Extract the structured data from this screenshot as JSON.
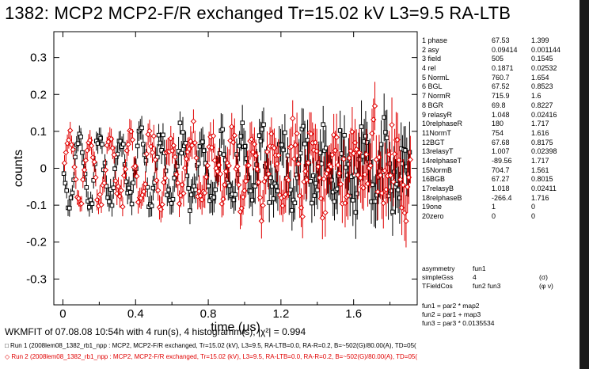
{
  "title": "1382: MCP2  MCP2-F/R exchanged  Tr=15.02 kV  L3=9.5  RA-LTB",
  "colors": {
    "run1": "#000000",
    "run2": "#e00000",
    "axis": "#000000"
  },
  "chart_data": {
    "type": "scatter",
    "xlabel": "time (μs)",
    "ylabel": "counts",
    "xlim": [
      -0.05,
      1.95
    ],
    "ylim": [
      -0.37,
      0.37
    ],
    "xticks": [
      0,
      0.4,
      0.8,
      1.2,
      1.6
    ],
    "xtick_labels": [
      "0",
      "0.4",
      "0.8",
      "1.2",
      "1.6"
    ],
    "yticks": [
      -0.3,
      -0.2,
      -0.1,
      0,
      0.1,
      0.2,
      0.3
    ],
    "ytick_labels": [
      "-0.3",
      "-0.2",
      "-0.1",
      "0",
      "0.1",
      "0.2",
      "0.3"
    ],
    "grid": false,
    "series": [
      {
        "marker": "square",
        "color": "#000000",
        "t0": 0.005,
        "dt": 0.0078,
        "n": 245,
        "amplitude": 0.095,
        "frequency": 8.93,
        "phase_deg": 67.5
      },
      {
        "marker": "diamond",
        "color": "#e00000",
        "t0": 0.005,
        "dt": 0.0078,
        "n": 245,
        "amplitude": 0.094,
        "frequency": 8.93,
        "phase_deg": 247.5
      }
    ]
  },
  "params": [
    {
      "name": "1 phase",
      "value": "67.53",
      "error": "1.399"
    },
    {
      "name": "2 asy",
      "value": "0.09414",
      "error": "0.001144"
    },
    {
      "name": "3 field",
      "value": "505",
      "error": "0.1545"
    },
    {
      "name": "4 rel",
      "value": "0.1871",
      "error": "0.02532"
    },
    {
      "name": "5 NormL",
      "value": "760.7",
      "error": "1.654"
    },
    {
      "name": "6 BGL",
      "value": "67.52",
      "error": "0.8523"
    },
    {
      "name": "7 NormR",
      "value": "715.9",
      "error": "1.6"
    },
    {
      "name": "8 BGR",
      "value": "69.8",
      "error": "0.8227"
    },
    {
      "name": "9 relasyR",
      "value": "1.048",
      "error": "0.02416"
    },
    {
      "name": "10relphaseR",
      "value": "180",
      "error": "1.717"
    },
    {
      "name": "11NormT",
      "value": "754",
      "error": "1.616"
    },
    {
      "name": "12BGT",
      "value": "67.68",
      "error": "0.8175"
    },
    {
      "name": "13relasyT",
      "value": "1.007",
      "error": "0.02398"
    },
    {
      "name": "14relphaseT",
      "value": "-89.56",
      "error": "1.717"
    },
    {
      "name": "15NormB",
      "value": "704.7",
      "error": "1.561"
    },
    {
      "name": "16BGB",
      "value": "67.27",
      "error": "0.8015"
    },
    {
      "name": "17relasyB",
      "value": "1.018",
      "error": "0.02411"
    },
    {
      "name": "18relphaseB",
      "value": "-266.4",
      "error": "1.716"
    },
    {
      "name": "19one",
      "value": "1",
      "error": "0"
    },
    {
      "name": "20zero",
      "value": "0",
      "error": "0"
    }
  ],
  "functions": [
    {
      "c1": "asymmetry",
      "c2": "fun1",
      "c3": ""
    },
    {
      "c1": "simpleGss",
      "c2": "4",
      "c3": "(σ)"
    },
    {
      "c1": "TFieldCos",
      "c2": "fun2  fun3",
      "c3": "(φ ν)"
    }
  ],
  "equations": [
    "fun1 = par2 * map2",
    "fun2 = par1 + map3",
    "fun3 = par3 * 0.0135534"
  ],
  "footer": {
    "fit_text": "WKMFIT of 07.08.08 10:54h with 4 run(s), 4 histogramm(s), |χ²| = 0.994",
    "run1": "□ Run 1 (2008lem08_1382_rb1_npp : MCP2, MCP2-F/R exchanged, Tr=15.02 (kV), L3=9.5, RA-LTB=0.0, RA-R=0.2, B=~502(G)/80.00(A), TD=05(",
    "run2": "◇ Run 2 (2008lem08_1382_rb1_npp : MCP2, MCP2-F/R exchanged, Tr=15.02 (kV), L3=9.5, RA-LTB=0.0, RA-R=0.2, B=~502(G)/80.00(A), TD=05("
  }
}
